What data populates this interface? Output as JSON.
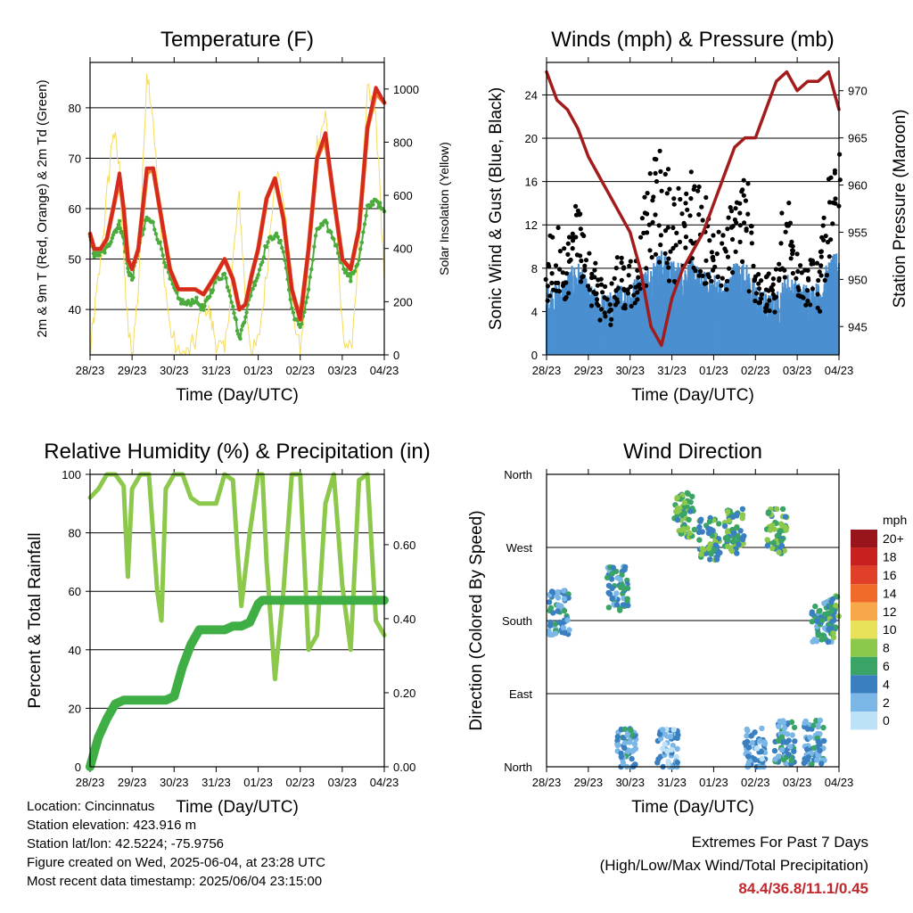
{
  "colors": {
    "temp_2m": "#d42a20",
    "temp_9m": "#f07a2a",
    "dewpoint": "#4bab3c",
    "solar": "#f5dc5a",
    "wind": "#4a8fd0",
    "gust": "#000000",
    "pressure": "#a31b1b",
    "rh": "#8cc84b",
    "precip": "#3fae45"
  },
  "info": {
    "location": "Location: Cincinnatus",
    "elevation": "Station elevation: 423.916 m",
    "latlon": "Station lat/lon: 42.5224; -75.9756",
    "created": "Figure created on Wed, 2025-06-04, at 23:28 UTC",
    "recent": "Most recent data timestamp: 2025/06/04 23:15:00"
  },
  "extremes": {
    "title": "Extremes For Past 7 Days",
    "subtitle": "(High/Low/Max Wind/Total Precipitation)",
    "values": "84.4/36.8/11.1/0.45"
  },
  "chart_data": [
    {
      "id": "temperature",
      "type": "line",
      "title": "Temperature (F)",
      "xlabel": "Time (Day/UTC)",
      "ylabel": "2m & 9m T (Red, Orange) & 2m Td (Green)",
      "y2label": "Solar Insolation (Yellow)",
      "x_ticks": [
        "28/23",
        "29/23",
        "30/23",
        "31/23",
        "01/23",
        "02/23",
        "03/23",
        "04/23"
      ],
      "ylim": [
        31,
        89
      ],
      "y_ticks": [
        40,
        50,
        60,
        70,
        80
      ],
      "y2lim": [
        0,
        1100
      ],
      "y2_ticks": [
        0,
        200,
        400,
        600,
        800,
        1000
      ],
      "grid": true,
      "x": [
        0,
        0.1,
        0.25,
        0.4,
        0.55,
        0.7,
        0.8,
        0.9,
        1.0,
        1.15,
        1.35,
        1.5,
        1.7,
        1.9,
        2.1,
        2.3,
        2.5,
        2.7,
        2.85,
        3.0,
        3.2,
        3.4,
        3.55,
        3.7,
        3.85,
        4.0,
        4.2,
        4.4,
        4.6,
        4.8,
        5.0,
        5.2,
        5.4,
        5.6,
        5.8,
        6.0,
        6.2,
        6.4,
        6.6,
        6.8,
        7.0
      ],
      "series": [
        {
          "name": "2m T",
          "color_key": "temp_2m",
          "values": [
            55,
            52,
            52,
            54,
            60,
            67,
            60,
            50,
            48,
            52,
            68,
            68,
            58,
            48,
            44,
            44,
            44,
            43,
            45,
            47,
            50,
            46,
            40,
            41,
            47,
            52,
            62,
            66,
            58,
            44,
            38,
            52,
            70,
            75,
            62,
            50,
            48,
            56,
            76,
            84,
            81
          ]
        },
        {
          "name": "9m T",
          "color_key": "temp_9m",
          "values": [
            55,
            52,
            52,
            54,
            60,
            66,
            60,
            50,
            48,
            52,
            67,
            68,
            58,
            48,
            44,
            44,
            44,
            43,
            45,
            47,
            50,
            46,
            40,
            41,
            47,
            52,
            62,
            66,
            58,
            44,
            38,
            52,
            70,
            74,
            62,
            50,
            48,
            56,
            76,
            83,
            81
          ]
        },
        {
          "name": "2m Td",
          "color_key": "dewpoint",
          "values": [
            54,
            51,
            51,
            52,
            55,
            57,
            54,
            48,
            46,
            52,
            58,
            57,
            52,
            46,
            42,
            41,
            42,
            40,
            43,
            46,
            47,
            41,
            34,
            39,
            44,
            47,
            53,
            55,
            52,
            40,
            36,
            44,
            56,
            57,
            54,
            49,
            46,
            50,
            60,
            62,
            59
          ]
        },
        {
          "name": "Solar",
          "color_key": "solar",
          "axis": "y2",
          "values": [
            0,
            150,
            350,
            600,
            850,
            700,
            350,
            100,
            0,
            250,
            1080,
            900,
            400,
            100,
            0,
            0,
            50,
            200,
            150,
            50,
            0,
            350,
            600,
            200,
            0,
            50,
            300,
            700,
            600,
            200,
            0,
            350,
            800,
            900,
            600,
            100,
            0,
            400,
            1000,
            900,
            300
          ]
        }
      ]
    },
    {
      "id": "winds",
      "type": "scatter",
      "title": "Winds (mph) & Pressure (mb)",
      "xlabel": "Time (Day/UTC)",
      "ylabel": "Sonic Wind & Gust (Blue, Black)",
      "y2label": "Station Pressure (Maroon)",
      "x_ticks": [
        "28/23",
        "29/23",
        "30/23",
        "31/23",
        "01/23",
        "02/23",
        "03/23",
        "04/23"
      ],
      "ylim": [
        0,
        27
      ],
      "y_ticks": [
        0,
        4,
        8,
        12,
        16,
        20,
        24
      ],
      "y2lim": [
        942,
        973
      ],
      "y2_ticks": [
        945,
        950,
        955,
        960,
        965,
        970
      ],
      "grid": true,
      "x": [
        0,
        0.25,
        0.5,
        0.75,
        1.0,
        1.25,
        1.5,
        1.75,
        2.0,
        2.25,
        2.5,
        2.75,
        3.0,
        3.25,
        3.5,
        3.75,
        4.0,
        4.25,
        4.5,
        4.75,
        5.0,
        5.25,
        5.5,
        5.75,
        6.0,
        6.25,
        6.5,
        6.75,
        7.0
      ],
      "series": [
        {
          "name": "Gust",
          "color_key": "gust",
          "values": [
            8,
            10,
            9,
            13,
            8,
            6,
            5,
            8,
            7,
            10,
            14,
            16,
            12,
            13,
            14,
            12,
            10,
            9,
            13,
            14,
            8,
            6,
            6,
            12,
            9,
            8,
            7,
            13,
            15
          ]
        },
        {
          "name": "Wind",
          "color_key": "wind",
          "values": [
            4,
            4,
            5,
            6,
            4,
            3,
            3,
            4,
            4,
            5,
            6,
            7,
            6,
            6,
            6,
            5,
            5,
            4,
            6,
            6,
            4,
            3,
            3,
            5,
            4,
            4,
            4,
            6,
            7
          ]
        },
        {
          "name": "Pressure",
          "color_key": "pressure",
          "axis": "y2",
          "values": [
            972,
            969,
            968,
            966,
            963,
            961,
            959,
            957,
            955,
            951,
            945,
            943,
            948,
            951,
            953,
            955,
            958,
            961,
            964,
            965,
            965,
            968,
            971,
            972,
            970,
            971,
            971,
            972,
            968
          ]
        }
      ]
    },
    {
      "id": "humidity",
      "type": "line",
      "title": "Relative Humidity (%) & Precipitation (in)",
      "xlabel": "Time (Day/UTC)",
      "ylabel": "Percent & Total Rainfall",
      "x_ticks": [
        "28/23",
        "29/23",
        "30/23",
        "31/23",
        "01/23",
        "02/23",
        "03/23",
        "04/23"
      ],
      "ylim": [
        0,
        100
      ],
      "y_ticks": [
        0,
        20,
        40,
        60,
        80,
        100
      ],
      "y2lim": [
        0,
        0.79
      ],
      "y2_ticks": [
        "0.00",
        "0.20",
        "0.40",
        "0.60"
      ],
      "grid": true,
      "x": [
        0,
        0.2,
        0.4,
        0.6,
        0.8,
        0.9,
        1.0,
        1.2,
        1.4,
        1.6,
        1.7,
        1.8,
        2.0,
        2.2,
        2.4,
        2.6,
        2.8,
        3.0,
        3.2,
        3.4,
        3.5,
        3.6,
        3.8,
        4.0,
        4.1,
        4.2,
        4.4,
        4.6,
        4.8,
        5.0,
        5.2,
        5.4,
        5.6,
        5.8,
        6.0,
        6.2,
        6.4,
        6.6,
        6.8,
        7.0
      ],
      "series": [
        {
          "name": "RH",
          "color_key": "rh",
          "values": [
            92,
            95,
            100,
            100,
            96,
            65,
            95,
            100,
            100,
            60,
            50,
            95,
            100,
            100,
            92,
            90,
            90,
            90,
            100,
            98,
            75,
            55,
            80,
            100,
            100,
            70,
            30,
            60,
            100,
            100,
            40,
            45,
            90,
            100,
            62,
            40,
            98,
            100,
            50,
            45
          ]
        },
        {
          "name": "Precipitation",
          "color_key": "precip",
          "axis": "y2",
          "values": [
            0,
            0.08,
            0.13,
            0.17,
            0.18,
            0.18,
            0.18,
            0.18,
            0.18,
            0.18,
            0.18,
            0.18,
            0.19,
            0.27,
            0.33,
            0.37,
            0.37,
            0.37,
            0.37,
            0.38,
            0.38,
            0.38,
            0.39,
            0.44,
            0.45,
            0.45,
            0.45,
            0.45,
            0.45,
            0.45,
            0.45,
            0.45,
            0.45,
            0.45,
            0.45,
            0.45,
            0.45,
            0.45,
            0.45,
            0.45
          ]
        }
      ]
    },
    {
      "id": "direction",
      "type": "scatter",
      "title": "Wind Direction",
      "xlabel": "Time (Day/UTC)",
      "ylabel": "Direction (Colored By Speed)",
      "x_ticks": [
        "28/23",
        "29/23",
        "30/23",
        "31/23",
        "01/23",
        "02/23",
        "03/23",
        "04/23"
      ],
      "y_ticks": [
        "North",
        "East",
        "South",
        "West",
        "North"
      ],
      "ylim": [
        0,
        360
      ],
      "grid": true,
      "legend": {
        "position": "right",
        "title": "mph",
        "labels": [
          "20+",
          "18",
          "16",
          "14",
          "12",
          "10",
          "8",
          "6",
          "4",
          "2",
          "0"
        ],
        "colors": [
          "#98161b",
          "#c8201f",
          "#e04028",
          "#f06a2a",
          "#f8a848",
          "#e8e25a",
          "#8cc84b",
          "#3aa466",
          "#3a7fbf",
          "#7ab6e6",
          "#bde2f8"
        ]
      },
      "clusters": [
        {
          "x": 0.3,
          "dir": 190,
          "speed": 3
        },
        {
          "x": 1.7,
          "dir": 220,
          "speed": 4
        },
        {
          "x": 1.9,
          "dir": 20,
          "speed": 3
        },
        {
          "x": 2.9,
          "dir": 20,
          "speed": 2
        },
        {
          "x": 3.3,
          "dir": 310,
          "speed": 6
        },
        {
          "x": 3.9,
          "dir": 280,
          "speed": 5
        },
        {
          "x": 4.5,
          "dir": 290,
          "speed": 5
        },
        {
          "x": 5.0,
          "dir": 20,
          "speed": 2
        },
        {
          "x": 5.5,
          "dir": 290,
          "speed": 6
        },
        {
          "x": 5.7,
          "dir": 30,
          "speed": 3
        },
        {
          "x": 6.4,
          "dir": 30,
          "speed": 3
        },
        {
          "x": 6.6,
          "dir": 180,
          "speed": 4
        },
        {
          "x": 7.0,
          "dir": 185,
          "speed": 5
        }
      ]
    }
  ]
}
